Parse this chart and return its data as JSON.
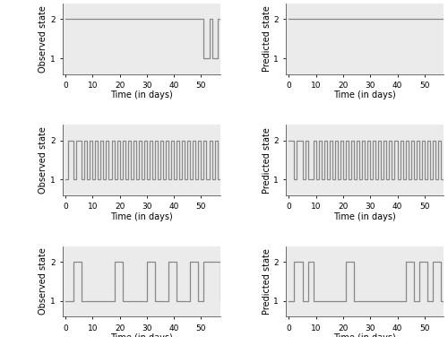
{
  "xlim": [
    -1,
    57
  ],
  "ylim": [
    0.6,
    2.4
  ],
  "yticks": [
    1,
    2
  ],
  "xticks": [
    0,
    10,
    20,
    30,
    40,
    50
  ],
  "xlabel": "Time (in days)",
  "ylabel_obs": "Observed state",
  "ylabel_pred": "Predicted state",
  "line_color": "#888888",
  "bg_color": "#ebebeb",
  "linewidth": 0.9,
  "tick_fontsize": 6.5,
  "label_fontsize": 7.0,
  "obs1": [
    [
      0,
      2
    ],
    [
      51,
      1
    ],
    [
      53,
      2
    ],
    [
      54,
      1
    ],
    [
      56,
      2
    ]
  ],
  "pred1": [
    [
      0,
      2
    ]
  ],
  "obs2": [
    [
      0,
      1
    ],
    [
      1,
      2
    ],
    [
      3,
      1
    ],
    [
      4,
      2
    ],
    [
      6,
      1
    ],
    [
      7,
      2
    ],
    [
      8,
      1
    ],
    [
      9,
      2
    ],
    [
      10,
      1
    ],
    [
      11,
      2
    ],
    [
      12,
      1
    ],
    [
      13,
      2
    ],
    [
      14,
      1
    ],
    [
      15,
      2
    ],
    [
      16,
      1
    ],
    [
      17,
      2
    ],
    [
      18,
      1
    ],
    [
      19,
      2
    ],
    [
      20,
      1
    ],
    [
      21,
      2
    ],
    [
      22,
      1
    ],
    [
      23,
      2
    ],
    [
      24,
      1
    ],
    [
      25,
      2
    ],
    [
      26,
      1
    ],
    [
      27,
      2
    ],
    [
      28,
      1
    ],
    [
      29,
      2
    ],
    [
      30,
      1
    ],
    [
      31,
      2
    ],
    [
      32,
      1
    ],
    [
      33,
      2
    ],
    [
      34,
      1
    ],
    [
      35,
      2
    ],
    [
      36,
      1
    ],
    [
      37,
      2
    ],
    [
      38,
      1
    ],
    [
      39,
      2
    ],
    [
      40,
      1
    ],
    [
      41,
      2
    ],
    [
      42,
      1
    ],
    [
      43,
      2
    ],
    [
      44,
      1
    ],
    [
      45,
      2
    ],
    [
      46,
      1
    ],
    [
      47,
      2
    ],
    [
      48,
      1
    ],
    [
      49,
      2
    ],
    [
      50,
      1
    ],
    [
      51,
      2
    ],
    [
      52,
      1
    ],
    [
      53,
      2
    ],
    [
      54,
      1
    ],
    [
      55,
      2
    ],
    [
      56,
      1
    ]
  ],
  "pred2": [
    [
      0,
      2
    ],
    [
      2,
      1
    ],
    [
      3,
      2
    ],
    [
      5,
      1
    ],
    [
      6,
      2
    ],
    [
      7,
      1
    ],
    [
      9,
      2
    ],
    [
      10,
      1
    ],
    [
      11,
      2
    ],
    [
      12,
      1
    ],
    [
      13,
      2
    ],
    [
      14,
      1
    ],
    [
      15,
      2
    ],
    [
      16,
      1
    ],
    [
      17,
      2
    ],
    [
      18,
      1
    ],
    [
      19,
      2
    ],
    [
      20,
      1
    ],
    [
      21,
      2
    ],
    [
      22,
      1
    ],
    [
      23,
      2
    ],
    [
      24,
      1
    ],
    [
      25,
      2
    ],
    [
      26,
      1
    ],
    [
      27,
      2
    ],
    [
      28,
      1
    ],
    [
      29,
      2
    ],
    [
      30,
      1
    ],
    [
      31,
      2
    ],
    [
      32,
      1
    ],
    [
      33,
      2
    ],
    [
      34,
      1
    ],
    [
      35,
      2
    ],
    [
      36,
      1
    ],
    [
      37,
      2
    ],
    [
      38,
      1
    ],
    [
      39,
      2
    ],
    [
      40,
      1
    ],
    [
      41,
      2
    ],
    [
      42,
      1
    ],
    [
      43,
      2
    ],
    [
      44,
      1
    ],
    [
      45,
      2
    ],
    [
      46,
      1
    ],
    [
      47,
      2
    ],
    [
      48,
      1
    ],
    [
      49,
      2
    ],
    [
      50,
      1
    ],
    [
      51,
      2
    ],
    [
      52,
      1
    ],
    [
      53,
      2
    ],
    [
      54,
      1
    ],
    [
      55,
      2
    ],
    [
      56,
      1
    ]
  ],
  "obs3": [
    [
      0,
      1
    ],
    [
      3,
      2
    ],
    [
      6,
      1
    ],
    [
      18,
      2
    ],
    [
      21,
      1
    ],
    [
      30,
      2
    ],
    [
      33,
      1
    ],
    [
      38,
      2
    ],
    [
      41,
      1
    ],
    [
      46,
      2
    ],
    [
      49,
      1
    ],
    [
      51,
      2
    ],
    [
      57,
      1
    ]
  ],
  "pred3": [
    [
      0,
      1
    ],
    [
      2,
      2
    ],
    [
      5,
      1
    ],
    [
      7,
      2
    ],
    [
      9,
      1
    ],
    [
      21,
      2
    ],
    [
      24,
      1
    ],
    [
      43,
      2
    ],
    [
      46,
      1
    ],
    [
      48,
      2
    ],
    [
      51,
      1
    ],
    [
      53,
      2
    ],
    [
      56,
      1
    ]
  ]
}
